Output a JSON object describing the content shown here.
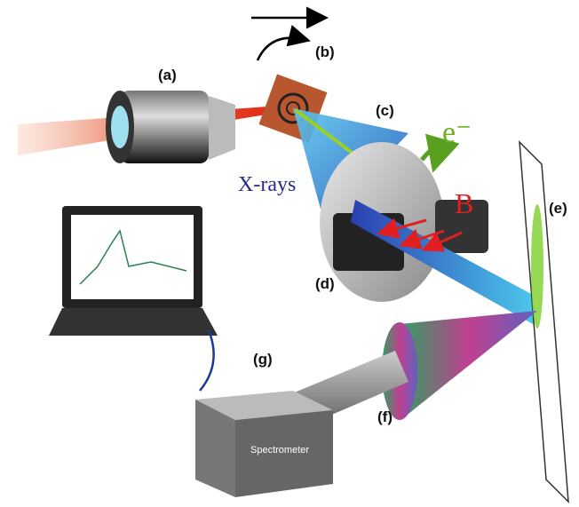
{
  "labels": {
    "a": "(a)",
    "b": "(b)",
    "c": "(c)",
    "d": "(d)",
    "e": "(e)",
    "f": "(f)",
    "g": "(g)"
  },
  "xrays": "X-rays",
  "electron": "e⁻",
  "field": "B",
  "spectrometer": "Spectrometer"
}
